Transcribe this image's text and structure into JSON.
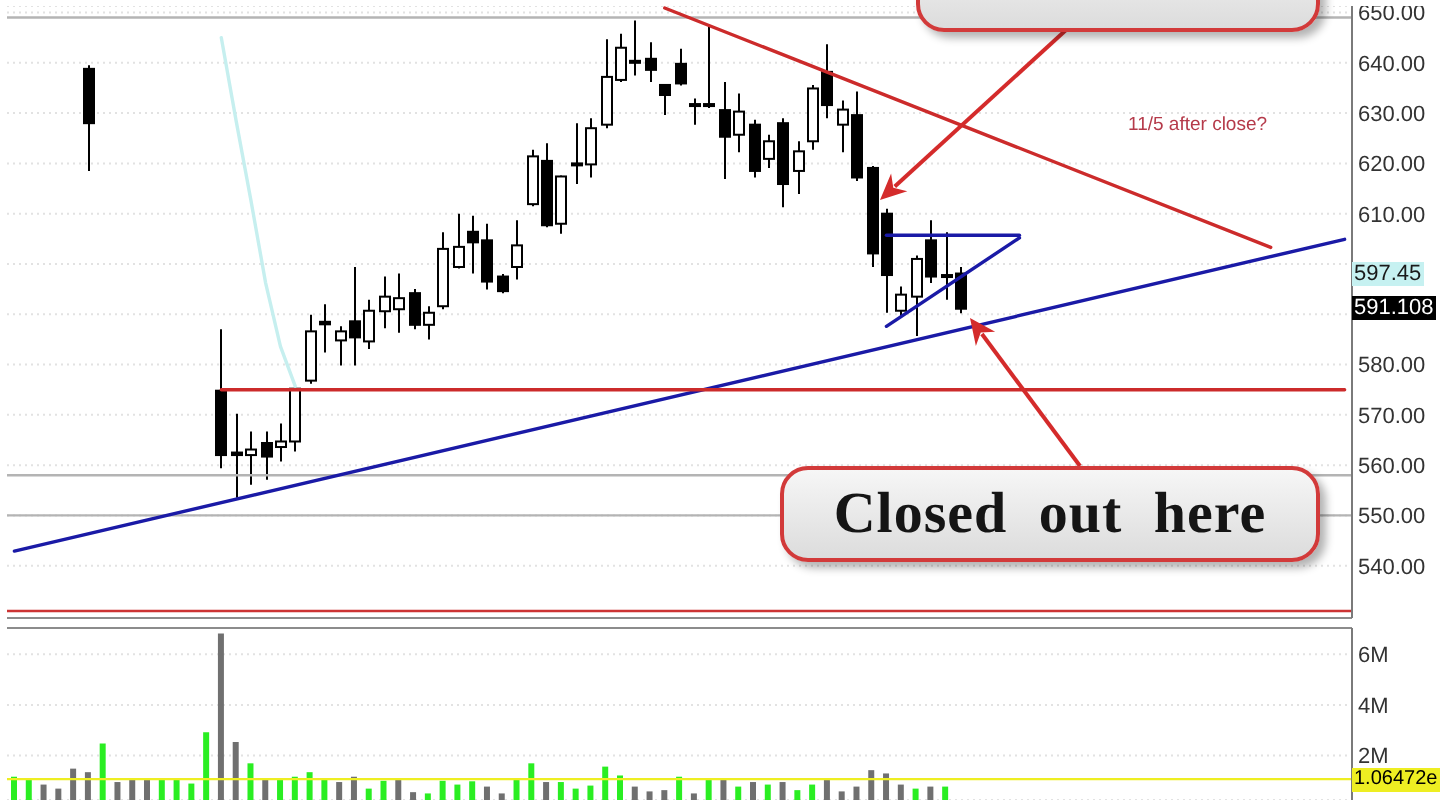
{
  "chart_data": [
    {
      "type": "candlestick",
      "categories": [
        null,
        null,
        null,
        null,
        null,
        null,
        null,
        null,
        null,
        null,
        null,
        null,
        null,
        null,
        null,
        null,
        null,
        null,
        null,
        null,
        null,
        null,
        null,
        null,
        null,
        null,
        null,
        null,
        null,
        null,
        null,
        null,
        null,
        null,
        null,
        null,
        null,
        null,
        null,
        null,
        null,
        null,
        null,
        null,
        null,
        null,
        null,
        null,
        null,
        null,
        null,
        null,
        null,
        null,
        null,
        null,
        null,
        null,
        null,
        null,
        null,
        null,
        null,
        null,
        null,
        null,
        null,
        null,
        null,
        null,
        null,
        null,
        null,
        null,
        null,
        null,
        null,
        null,
        null,
        null,
        null,
        null,
        null,
        null,
        null,
        null,
        null,
        null,
        null,
        null,
        null
      ],
      "ohlc": [
        null,
        null,
        null,
        null,
        null,
        [
          638.8,
          639.5,
          618.5,
          628
        ],
        null,
        null,
        null,
        null,
        null,
        null,
        null,
        null,
        [
          574.8,
          587,
          559.4,
          562
        ],
        [
          562.5,
          570.2,
          553.5,
          562
        ],
        [
          562,
          566.7,
          556.1,
          563.1
        ],
        [
          564.4,
          566.7,
          557.1,
          561.7
        ],
        [
          563.6,
          568.3,
          560.7,
          564.7
        ],
        [
          564.7,
          575.2,
          562.7,
          575.2
        ],
        [
          576.8,
          589.9,
          576.2,
          586.6
        ],
        [
          588.5,
          592,
          582.4,
          588
        ],
        [
          584.8,
          587.6,
          579.8,
          586.6
        ],
        [
          588.6,
          599.4,
          579.8,
          585.4
        ],
        [
          584.6,
          592.9,
          583.1,
          590.7
        ],
        [
          590.6,
          597.5,
          587.2,
          593.5
        ],
        [
          591,
          598.1,
          586.3,
          593.2
        ],
        [
          594.2,
          595,
          587,
          587.9
        ],
        [
          587.9,
          591.6,
          585,
          590.3
        ],
        [
          591.6,
          606.3,
          591,
          603
        ],
        [
          599.4,
          610,
          599.1,
          603.4
        ],
        [
          606.4,
          609.6,
          598.1,
          604.3
        ],
        [
          604.7,
          608,
          594.9,
          596.5
        ],
        [
          597.5,
          598,
          594.2,
          594.6
        ],
        [
          599.4,
          608.7,
          596.9,
          603.7
        ],
        [
          611.9,
          622.7,
          611.5,
          621.4
        ],
        [
          620.5,
          624,
          607.3,
          607.7
        ],
        [
          608,
          617.6,
          606,
          617.4
        ],
        [
          620,
          628,
          615.9,
          619.8
        ],
        [
          619.8,
          629,
          617.2,
          627
        ],
        [
          627.7,
          644.7,
          627,
          637.2
        ],
        [
          636.6,
          645.8,
          636.2,
          643
        ],
        [
          640.4,
          648.4,
          637.5,
          640.2
        ],
        [
          640.8,
          644.1,
          636.2,
          638.6
        ],
        [
          635.6,
          635.8,
          629.6,
          633.6
        ],
        [
          639.8,
          642.8,
          635.5,
          635.9
        ],
        [
          631.8,
          632.9,
          627.7,
          631.6
        ],
        [
          631.8,
          647.4,
          631,
          631.6
        ],
        [
          630.6,
          636.2,
          616.9,
          625.3
        ],
        [
          625.7,
          633.9,
          622.2,
          630.3
        ],
        [
          627.7,
          628.7,
          617.2,
          618.5
        ],
        [
          620.9,
          625.7,
          619.1,
          624.4
        ],
        [
          628,
          629,
          611.3,
          615.9
        ],
        [
          618.5,
          624.4,
          613.9,
          622.4
        ],
        [
          624.4,
          635.6,
          622.7,
          634.9
        ],
        [
          638.2,
          643.7,
          629,
          631.6
        ],
        [
          627.7,
          632.5,
          622.2,
          630.7
        ],
        [
          629.6,
          634.3,
          616.5,
          617.2
        ],
        [
          619.1,
          619.5,
          599.4,
          602.1
        ],
        [
          610,
          611,
          590.3,
          597.8
        ],
        [
          590.7,
          595.5,
          589.6,
          593.9
        ],
        [
          593.5,
          601.7,
          585.7,
          601
        ],
        [
          604.7,
          608.7,
          596.2,
          597.5
        ],
        [
          597.8,
          606.3,
          592.9,
          597.6
        ],
        [
          598.1,
          599.4,
          590.2,
          591.1
        ],
        null,
        null,
        null,
        null,
        null,
        null,
        null,
        null,
        null,
        null,
        null,
        null,
        null,
        null,
        null,
        null,
        null,
        null,
        null,
        null,
        null,
        null,
        null,
        null,
        null,
        null
      ],
      "color": "#000000",
      "series": [
        {
          "type": "line",
          "color": "#c6efef",
          "values": [
            null,
            null,
            null,
            null,
            null,
            null,
            null,
            null,
            null,
            null,
            null,
            null,
            null,
            null,
            645,
            628.5,
            612.7,
            596.2,
            583.6,
            575.7,
            null,
            null,
            null,
            null,
            null,
            null,
            null,
            null,
            null,
            null,
            null,
            null,
            null,
            null,
            null,
            null,
            null,
            null,
            null,
            null,
            null,
            null,
            null,
            null,
            null,
            null,
            null,
            null,
            null,
            null,
            null,
            null,
            null,
            null,
            null,
            null,
            null,
            null,
            null,
            null,
            null,
            null,
            null,
            null,
            null,
            null,
            null,
            null,
            null,
            null,
            null,
            null,
            null,
            null,
            null,
            null,
            null,
            null,
            null,
            null,
            null,
            null,
            null,
            null,
            null,
            null,
            null,
            null,
            null,
            null,
            null
          ]
        },
        {
          "type": "line",
          "color": "#1a1aa6",
          "values": [
            542.9,
            null,
            null,
            null,
            null,
            null,
            null,
            null,
            null,
            null,
            null,
            null,
            null,
            null,
            null,
            null,
            null,
            null,
            null,
            null,
            null,
            null,
            null,
            null,
            null,
            null,
            null,
            null,
            null,
            null,
            null,
            null,
            null,
            null,
            null,
            null,
            null,
            null,
            null,
            null,
            null,
            null,
            null,
            null,
            null,
            null,
            null,
            null,
            null,
            null,
            null,
            null,
            null,
            null,
            null,
            null,
            null,
            null,
            null,
            null,
            null,
            null,
            null,
            null,
            null,
            null,
            null,
            null,
            null,
            null,
            null,
            null,
            null,
            null,
            null,
            null,
            null,
            null,
            null,
            null,
            null,
            null,
            null,
            null,
            null,
            null,
            null,
            null,
            null,
            null,
            604.9
          ]
        },
        {
          "type": "line",
          "color": "#cc2b2b",
          "values": [
            null,
            null,
            null,
            null,
            null,
            null,
            null,
            null,
            null,
            null,
            null,
            null,
            null,
            null,
            null,
            null,
            null,
            null,
            null,
            null,
            null,
            null,
            null,
            null,
            null,
            null,
            null,
            null,
            null,
            null,
            null,
            null,
            null,
            null,
            null,
            null,
            null,
            null,
            null,
            null,
            null,
            null,
            null,
            null,
            650.9,
            null,
            null,
            null,
            null,
            null,
            null,
            null,
            null,
            null,
            null,
            null,
            null,
            null,
            null,
            null,
            null,
            null,
            null,
            null,
            null,
            null,
            null,
            null,
            null,
            null,
            null,
            null,
            null,
            null,
            null,
            null,
            null,
            null,
            null,
            null,
            null,
            null,
            null,
            null,
            null,
            603.3,
            null,
            null,
            null,
            null,
            null
          ]
        },
        {
          "type": "line",
          "color": "#cc2b2b",
          "values": [
            null,
            null,
            null,
            null,
            null,
            null,
            null,
            null,
            null,
            null,
            null,
            null,
            null,
            null,
            575,
            null,
            null,
            null,
            null,
            null,
            null,
            null,
            null,
            null,
            null,
            null,
            null,
            null,
            null,
            null,
            null,
            null,
            null,
            null,
            null,
            null,
            null,
            null,
            null,
            null,
            null,
            null,
            null,
            null,
            null,
            null,
            null,
            null,
            null,
            null,
            null,
            null,
            null,
            null,
            null,
            null,
            null,
            null,
            null,
            null,
            null,
            null,
            null,
            null,
            null,
            null,
            null,
            null,
            null,
            null,
            null,
            null,
            null,
            null,
            null,
            null,
            null,
            null,
            null,
            null,
            null,
            null,
            null,
            null,
            null,
            null,
            null,
            null,
            null,
            null,
            575
          ]
        },
        {
          "type": "line",
          "color": "#1a1aa6",
          "values": [
            null,
            null,
            null,
            null,
            null,
            null,
            null,
            null,
            null,
            null,
            null,
            null,
            null,
            null,
            null,
            null,
            null,
            null,
            null,
            null,
            null,
            null,
            null,
            null,
            null,
            null,
            null,
            null,
            null,
            null,
            null,
            null,
            null,
            null,
            null,
            null,
            null,
            null,
            null,
            null,
            null,
            null,
            null,
            null,
            null,
            null,
            null,
            null,
            null,
            null,
            null,
            null,
            null,
            null,
            null,
            null,
            null,
            null,
            null,
            605.7,
            null,
            null,
            null,
            null,
            null,
            null,
            null,
            null,
            605.7,
            null,
            null,
            null,
            null,
            null,
            null,
            null,
            null,
            null,
            null,
            null,
            null,
            null,
            null,
            null,
            null,
            null,
            null,
            null,
            null,
            null,
            null
          ]
        },
        {
          "type": "line",
          "color": "#1a1aa6",
          "values": [
            null,
            null,
            null,
            null,
            null,
            null,
            null,
            null,
            null,
            null,
            null,
            null,
            null,
            null,
            null,
            null,
            null,
            null,
            null,
            null,
            null,
            null,
            null,
            null,
            null,
            null,
            null,
            null,
            null,
            null,
            null,
            null,
            null,
            null,
            null,
            null,
            null,
            null,
            null,
            null,
            null,
            null,
            null,
            null,
            null,
            null,
            null,
            null,
            null,
            null,
            null,
            null,
            null,
            null,
            null,
            null,
            null,
            null,
            null,
            587.6,
            null,
            null,
            null,
            null,
            null,
            null,
            null,
            null,
            605.2,
            null,
            null,
            null,
            null,
            null,
            null,
            null,
            null,
            null,
            null,
            null,
            null,
            null,
            null,
            null,
            null,
            null,
            null,
            null,
            null,
            null,
            null
          ]
        }
      ],
      "ylim": [
        529.6,
        651.3
      ],
      "yticks": [
        {
          "value": 540,
          "label": "540.00"
        },
        {
          "value": 550,
          "label": "550.00"
        },
        {
          "value": 560,
          "label": "560.00"
        },
        {
          "value": 570,
          "label": "570.00"
        },
        {
          "value": 580,
          "label": "580.00"
        },
        {
          "value": 590,
          "label": null
        },
        {
          "value": 600,
          "label": null
        },
        {
          "value": 610,
          "label": "610.00"
        },
        {
          "value": 620,
          "label": "620.00"
        },
        {
          "value": 630,
          "label": "630.00"
        },
        {
          "value": 640,
          "label": "640.00"
        },
        {
          "value": 650,
          "label": "650.00"
        }
      ],
      "grid": "y",
      "tick_labels": "y",
      "ref_lines": [
        {
          "axis": "y",
          "value": 649,
          "color": "#b4b4b4"
        },
        {
          "axis": "y",
          "value": 558,
          "color": "#b4b4b4"
        },
        {
          "axis": "y",
          "value": 550,
          "color": "#b4b4b4"
        },
        {
          "axis": "y",
          "value": 531,
          "color": "#cc3333"
        }
      ],
      "annotations": [
        "11/5 after close?",
        "Closed out here",
        "597.45",
        "591.108"
      ]
    },
    {
      "type": "bar",
      "categories": [
        null,
        null,
        null,
        null,
        null,
        null,
        null,
        null,
        null,
        null,
        null,
        null,
        null,
        null,
        null,
        null,
        null,
        null,
        null,
        null,
        null,
        null,
        null,
        null,
        null,
        null,
        null,
        null,
        null,
        null,
        null,
        null,
        null,
        null,
        null,
        null,
        null,
        null,
        null,
        null,
        null,
        null,
        null,
        null,
        null,
        null,
        null,
        null,
        null,
        null,
        null,
        null,
        null,
        null,
        null,
        null,
        null,
        null,
        null,
        null,
        null,
        null,
        null,
        null,
        null,
        null,
        null,
        null,
        null,
        null,
        null,
        null,
        null,
        null,
        null,
        null,
        null,
        null,
        null,
        null,
        null,
        null,
        null,
        null,
        null,
        null,
        null,
        null,
        null,
        null,
        null
      ],
      "values": [
        1.16,
        1.08,
        0.85,
        0.69,
        1.48,
        1.34,
        2.47,
        0.95,
        1.08,
        1.03,
        1.08,
        1.11,
        0.89,
        2.92,
        6.82,
        2.53,
        1.69,
        1.08,
        1.08,
        1.16,
        1.34,
        1.11,
        0.95,
        1.16,
        0.69,
        1.0,
        1.03,
        0.55,
        0.5,
        1.0,
        0.85,
        0.98,
        0.77,
        0.5,
        1.08,
        1.69,
        0.95,
        0.95,
        0.69,
        0.81,
        1.56,
        1.21,
        0.77,
        0.58,
        0.63,
        1.16,
        0.5,
        1.03,
        1.03,
        0.77,
        0.95,
        0.85,
        0.95,
        0.63,
        0.85,
        1.03,
        0.58,
        0.77,
        1.42,
        1.29,
        0.85,
        0.69,
        0.77,
        0.77,
        null,
        null,
        null,
        null,
        null,
        null,
        null,
        null,
        null,
        null,
        null,
        null,
        null,
        null,
        null,
        null,
        null,
        null,
        null,
        null,
        null,
        null,
        null,
        null,
        null,
        null,
        null
      ],
      "colors": [
        "#2aee22",
        "#2aee22",
        "#707070",
        "#707070",
        "#707070",
        "#707070",
        "#2aee22",
        "#707070",
        "#707070",
        "#707070",
        "#2aee22",
        "#2aee22",
        "#2aee22",
        "#2aee22",
        "#707070",
        "#707070",
        "#2aee22",
        "#707070",
        "#2aee22",
        "#2aee22",
        "#2aee22",
        "#2aee22",
        "#707070",
        "#707070",
        "#2aee22",
        "#2aee22",
        "#707070",
        "#707070",
        "#2aee22",
        "#2aee22",
        "#2aee22",
        "#2aee22",
        "#707070",
        "#707070",
        "#2aee22",
        "#2aee22",
        "#707070",
        "#2aee22",
        "#2aee22",
        "#2aee22",
        "#2aee22",
        "#2aee22",
        "#707070",
        "#707070",
        "#707070",
        "#2aee22",
        "#707070",
        "#2aee22",
        "#707070",
        "#2aee22",
        "#707070",
        "#2aee22",
        "#707070",
        "#2aee22",
        "#2aee22",
        "#707070",
        "#707070",
        "#707070",
        "#707070",
        "#707070",
        "#707070",
        "#2aee22",
        "#707070",
        "#2aee22",
        null,
        null,
        null,
        null,
        null,
        null,
        null,
        null,
        null,
        null,
        null,
        null,
        null,
        null,
        null,
        null,
        null,
        null,
        null,
        null,
        null,
        null,
        null,
        null,
        null,
        null,
        null
      ],
      "ylim": [
        0.24,
        7.04
      ],
      "yticks": [
        {
          "value": 2,
          "label": "2M"
        },
        {
          "value": 4,
          "label": "4M"
        },
        {
          "value": 6,
          "label": "6M"
        }
      ],
      "grid": "y",
      "tick_labels": "y",
      "ref_lines": [
        {
          "axis": "y",
          "value": 1.06472,
          "label": "1.06472e",
          "color": "#eeee22"
        }
      ]
    }
  ]
}
